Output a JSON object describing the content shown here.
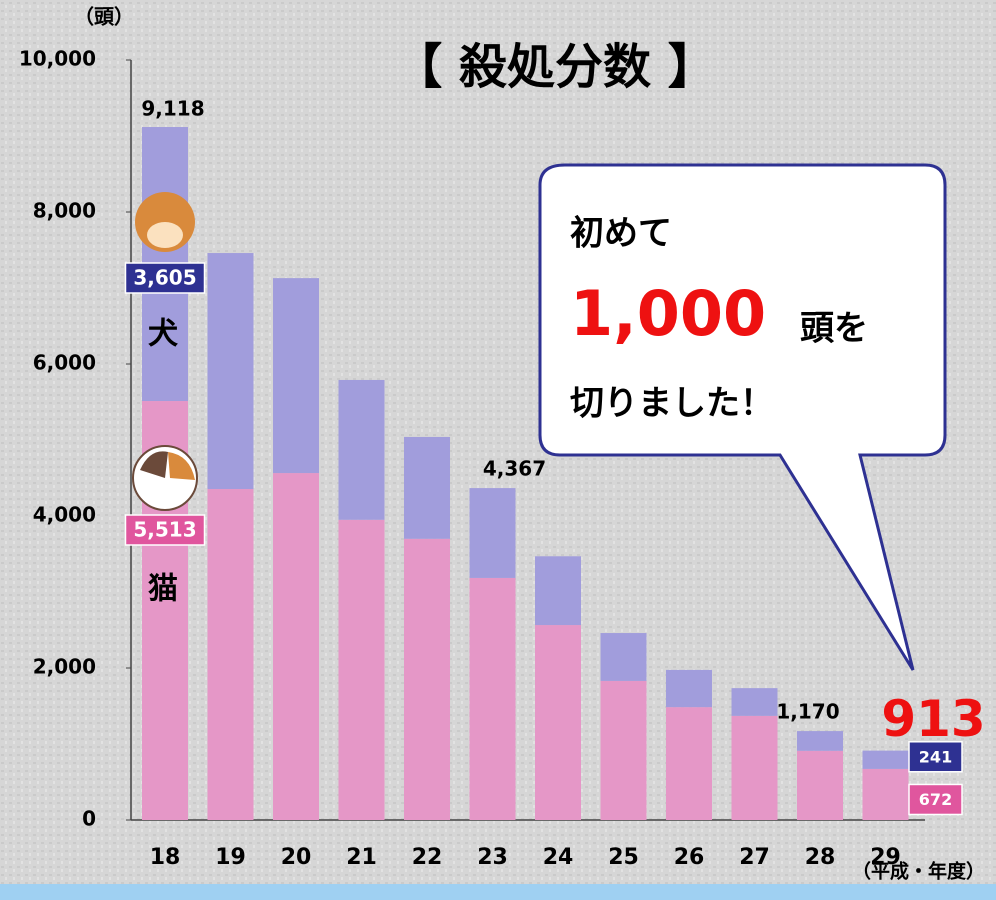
{
  "chart_data": {
    "type": "stacked-bar",
    "title": "【 殺処分数 】",
    "y_unit": "（頭）",
    "x_unit": "（平成・年度）",
    "categories": [
      "18",
      "19",
      "20",
      "21",
      "22",
      "23",
      "24",
      "25",
      "26",
      "27",
      "28",
      "29"
    ],
    "series": [
      {
        "name": "猫",
        "color": "#e597c7",
        "label_color": "#e0569e",
        "values": [
          5513,
          4355,
          4565,
          3950,
          3700,
          3185,
          2565,
          1830,
          1485,
          1370,
          910,
          672
        ],
        "value_labels": [
          "5,513",
          null,
          null,
          null,
          null,
          null,
          null,
          null,
          null,
          null,
          null,
          "672"
        ]
      },
      {
        "name": "犬",
        "color": "#a19ddc",
        "label_color": "#2e3192",
        "values": [
          3605,
          3105,
          2565,
          1840,
          1340,
          1182,
          905,
          630,
          490,
          365,
          260,
          241
        ],
        "value_labels": [
          "3,605",
          null,
          null,
          null,
          null,
          null,
          null,
          null,
          null,
          null,
          null,
          "241"
        ]
      }
    ],
    "totals": {
      "values": [
        9118,
        null,
        null,
        null,
        null,
        4367,
        null,
        null,
        null,
        null,
        1170,
        913
      ],
      "value_labels": [
        "9,118",
        null,
        null,
        null,
        null,
        "4,367",
        null,
        null,
        null,
        null,
        "1,170",
        "913"
      ]
    },
    "ylim": [
      0,
      10000
    ],
    "yticks": [
      {
        "value": 0,
        "label": "0"
      },
      {
        "value": 2000,
        "label": "2,000"
      },
      {
        "value": 4000,
        "label": "4,000"
      },
      {
        "value": 6000,
        "label": "6,000"
      },
      {
        "value": 8000,
        "label": "8,000"
      },
      {
        "value": 10000,
        "label": "10,000"
      }
    ],
    "callout": {
      "line1": "初めて",
      "number": "1,000",
      "unit": "頭を",
      "line3": "切りました！"
    }
  }
}
